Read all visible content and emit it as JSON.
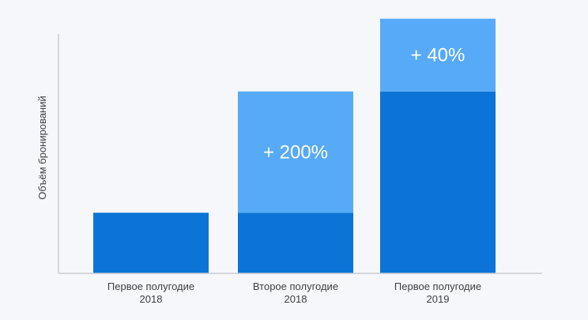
{
  "chart_data": {
    "type": "bar",
    "stacked": true,
    "title": "",
    "xlabel": "",
    "ylabel": "Объём бронирований",
    "categories": [
      [
        "Первое полугодие",
        "2018"
      ],
      [
        "Второе полугодие",
        "2018"
      ],
      [
        "Первое полугодие",
        "2019"
      ]
    ],
    "series": [
      {
        "values": [
          1,
          1,
          3
        ],
        "color": "#0b74d6"
      },
      {
        "values": [
          0,
          2,
          1.2
        ],
        "color": "#56aaf8"
      }
    ],
    "annotations": [
      "",
      "+ 200%",
      "+ 40%"
    ],
    "ylim": [
      0,
      4.3
    ],
    "grid": false,
    "legend": "none"
  }
}
